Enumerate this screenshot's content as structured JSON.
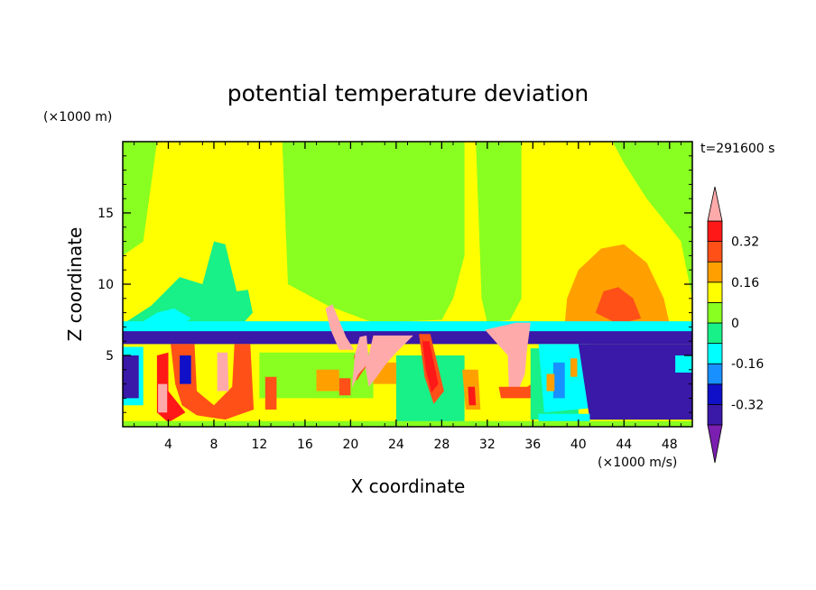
{
  "chart_data": {
    "type": "heatmap",
    "title": "potential temperature deviation",
    "xlabel": "X coordinate",
    "ylabel": "Z coordinate",
    "x_unit": "(×1000 m/s)",
    "y_unit": "(×1000 m)",
    "time_label": "t=291600 s",
    "xlim": [
      0,
      50
    ],
    "ylim": [
      0,
      20
    ],
    "x_ticks": [
      4,
      8,
      12,
      16,
      20,
      24,
      28,
      32,
      36,
      40,
      44,
      48
    ],
    "y_ticks": [
      5,
      10,
      15
    ],
    "x_tick_labels": [
      "4",
      "8",
      "12",
      "16",
      "20",
      "24",
      "28",
      "32",
      "36",
      "40",
      "44",
      "48"
    ],
    "y_tick_labels": [
      "5",
      "10",
      "15"
    ],
    "colorbar": {
      "levels": [
        -0.4,
        -0.32,
        -0.24,
        -0.16,
        -0.08,
        0,
        0.08,
        0.16,
        0.24,
        0.32,
        0.4
      ],
      "colors": [
        "#7a1fb0",
        "#3a18a8",
        "#1010c8",
        "#1890ff",
        "#00ffff",
        "#18f088",
        "#88ff20",
        "#ffff00",
        "#ffa000",
        "#ff5018",
        "#ff1818",
        "#ffaaaa"
      ],
      "tick_values": [
        -0.32,
        -0.16,
        0,
        0.16,
        0.32
      ],
      "tick_labels": [
        "-0.32",
        "-0.16",
        "0",
        "0.16",
        "0.32"
      ],
      "extend": "both"
    },
    "regions": [
      {
        "v": 0.08,
        "pts": [
          [
            0,
            20
          ],
          [
            50,
            20
          ],
          [
            50,
            6.8
          ],
          [
            0,
            6.8
          ]
        ]
      },
      {
        "v": 0,
        "pts": [
          [
            14,
            20
          ],
          [
            30,
            20
          ],
          [
            30,
            12
          ],
          [
            29,
            9
          ],
          [
            28,
            7.5
          ],
          [
            22,
            7.3
          ],
          [
            18,
            8.5
          ],
          [
            14.5,
            10
          ]
        ]
      },
      {
        "v": 0,
        "pts": [
          [
            31,
            20
          ],
          [
            35,
            20
          ],
          [
            35,
            9
          ],
          [
            34,
            7.5
          ],
          [
            32,
            7.3
          ],
          [
            31.5,
            9
          ]
        ]
      },
      {
        "v": 0,
        "pts": [
          [
            0,
            20
          ],
          [
            3,
            20
          ],
          [
            1.8,
            13
          ],
          [
            0,
            12
          ]
        ]
      },
      {
        "v": 0,
        "pts": [
          [
            43,
            20
          ],
          [
            50,
            20
          ],
          [
            50,
            9
          ],
          [
            49,
            13
          ],
          [
            46,
            16
          ],
          [
            44,
            18.5
          ]
        ]
      },
      {
        "v": -0.08,
        "pts": [
          [
            0,
            7.2
          ],
          [
            2.5,
            8.5
          ],
          [
            5,
            10.5
          ],
          [
            7,
            10
          ],
          [
            8,
            13
          ],
          [
            9,
            12.8
          ],
          [
            10,
            9.5
          ],
          [
            11,
            9.6
          ],
          [
            11.4,
            8
          ],
          [
            10.5,
            7.2
          ]
        ]
      },
      {
        "v": -0.16,
        "pts": [
          [
            1,
            7
          ],
          [
            3,
            8
          ],
          [
            4.5,
            8.3
          ],
          [
            6,
            7.6
          ],
          [
            5,
            7
          ]
        ]
      },
      {
        "v": 0.16,
        "pts": [
          [
            38.8,
            7.2
          ],
          [
            39,
            9
          ],
          [
            40,
            11
          ],
          [
            42,
            12.5
          ],
          [
            44,
            12.8
          ],
          [
            46,
            11.5
          ],
          [
            47.5,
            9
          ],
          [
            48,
            7.2
          ]
        ]
      },
      {
        "v": 0.24,
        "pts": [
          [
            41.5,
            8
          ],
          [
            42.2,
            9.5
          ],
          [
            43.5,
            9.8
          ],
          [
            44.8,
            9
          ],
          [
            45.5,
            7.6
          ],
          [
            43.5,
            7.2
          ]
        ]
      },
      {
        "v": -0.16,
        "pts": [
          [
            0,
            7.4
          ],
          [
            50,
            7.4
          ],
          [
            50,
            6.3
          ],
          [
            0,
            6.3
          ]
        ]
      },
      {
        "v": -0.4,
        "pts": [
          [
            0,
            6.7
          ],
          [
            50,
            6.7
          ],
          [
            50,
            5.8
          ],
          [
            0,
            5.8
          ]
        ]
      },
      {
        "v": 0.08,
        "pts": [
          [
            0,
            5.6
          ],
          [
            36,
            5.6
          ],
          [
            36,
            0
          ],
          [
            0,
            0
          ]
        ]
      },
      {
        "v": 0,
        "pts": [
          [
            12,
            5.2
          ],
          [
            22,
            5.2
          ],
          [
            22,
            2
          ],
          [
            12,
            2
          ]
        ]
      },
      {
        "v": -0.08,
        "pts": [
          [
            24,
            5
          ],
          [
            30,
            5
          ],
          [
            30,
            0
          ],
          [
            24,
            0
          ]
        ]
      },
      {
        "v": -0.16,
        "pts": [
          [
            0,
            5.6
          ],
          [
            1.8,
            5.6
          ],
          [
            1.8,
            1.5
          ],
          [
            0,
            1.5
          ]
        ]
      },
      {
        "v": -0.4,
        "pts": [
          [
            0,
            5
          ],
          [
            1.4,
            5
          ],
          [
            1.4,
            2
          ],
          [
            0,
            2
          ]
        ]
      },
      {
        "v": 0.24,
        "pts": [
          [
            2.5,
            5.8
          ],
          [
            4.2,
            5.8
          ],
          [
            4.6,
            3
          ],
          [
            5.2,
            1.5
          ],
          [
            6.5,
            0.8
          ],
          [
            9,
            0.5
          ],
          [
            11.5,
            1.2
          ],
          [
            11.2,
            5.8
          ],
          [
            9.8,
            5.8
          ],
          [
            9.6,
            2.8
          ],
          [
            8,
            1.5
          ],
          [
            6.5,
            2.5
          ],
          [
            6.3,
            5.8
          ]
        ]
      },
      {
        "v": 0.32,
        "pts": [
          [
            3,
            5
          ],
          [
            4,
            5.2
          ],
          [
            4,
            2.5
          ],
          [
            5.5,
            1
          ],
          [
            4,
            0.3
          ],
          [
            3,
            1
          ]
        ]
      },
      {
        "v": 0.4,
        "pts": [
          [
            3.1,
            3
          ],
          [
            3.9,
            3
          ],
          [
            3.9,
            1
          ],
          [
            3.1,
            1
          ]
        ]
      },
      {
        "v": 0.4,
        "pts": [
          [
            8.3,
            5.2
          ],
          [
            9.2,
            5.2
          ],
          [
            9.3,
            2.5
          ],
          [
            8.3,
            2.5
          ]
        ]
      },
      {
        "v": -0.32,
        "pts": [
          [
            5,
            5
          ],
          [
            6,
            5
          ],
          [
            6,
            3
          ],
          [
            5,
            3
          ]
        ]
      },
      {
        "v": 0.24,
        "pts": [
          [
            12.5,
            3.5
          ],
          [
            13.5,
            3.5
          ],
          [
            13.5,
            1.2
          ],
          [
            12.5,
            1.2
          ]
        ]
      },
      {
        "v": 0.16,
        "pts": [
          [
            17,
            4
          ],
          [
            19,
            4
          ],
          [
            19,
            2.5
          ],
          [
            17,
            2.5
          ]
        ]
      },
      {
        "v": 0.16,
        "pts": [
          [
            22,
            4.5
          ],
          [
            24,
            4.5
          ],
          [
            24,
            3
          ],
          [
            22,
            3
          ]
        ]
      },
      {
        "v": 0.24,
        "pts": [
          [
            19,
            3.4
          ],
          [
            20,
            3.4
          ],
          [
            20,
            2.2
          ],
          [
            19,
            2.2
          ]
        ]
      },
      {
        "v": 0.4,
        "pts": [
          [
            17.8,
            8.3
          ],
          [
            18.4,
            8.6
          ],
          [
            19.6,
            6.3
          ],
          [
            20.3,
            5.4
          ],
          [
            19,
            5.4
          ],
          [
            18.2,
            6.9
          ]
        ]
      },
      {
        "v": 0.24,
        "pts": [
          [
            20.3,
            5
          ],
          [
            21.3,
            5.8
          ],
          [
            21.6,
            4.5
          ],
          [
            20.5,
            3.2
          ]
        ]
      },
      {
        "v": 0.4,
        "pts": [
          [
            20.8,
            6.3
          ],
          [
            21.4,
            6.4
          ],
          [
            21.6,
            4.5
          ],
          [
            20.7,
            3.7
          ],
          [
            20.1,
            2.7
          ],
          [
            20.4,
            5.1
          ]
        ]
      },
      {
        "v": 0.4,
        "pts": [
          [
            22,
            6.4
          ],
          [
            25.5,
            6.4
          ],
          [
            24,
            5.2
          ],
          [
            23,
            4.3
          ],
          [
            22.3,
            3.5
          ],
          [
            21.6,
            2.8
          ],
          [
            21.3,
            4.1
          ]
        ]
      },
      {
        "v": 0.24,
        "pts": [
          [
            26,
            6.5
          ],
          [
            27,
            6.5
          ],
          [
            28.2,
            2.5
          ],
          [
            27.3,
            1.6
          ],
          [
            26.5,
            3.5
          ]
        ]
      },
      {
        "v": 0.32,
        "pts": [
          [
            26.3,
            6
          ],
          [
            26.9,
            6
          ],
          [
            27.7,
            3
          ],
          [
            27.1,
            2.4
          ],
          [
            26.6,
            4
          ]
        ]
      },
      {
        "v": 0.16,
        "pts": [
          [
            29.8,
            4
          ],
          [
            31.2,
            4
          ],
          [
            31.4,
            1.2
          ],
          [
            30.1,
            1.2
          ]
        ]
      },
      {
        "v": 0.32,
        "pts": [
          [
            30.3,
            2.8
          ],
          [
            30.9,
            2.8
          ],
          [
            31,
            1.5
          ],
          [
            30.4,
            1.5
          ]
        ]
      },
      {
        "v": 0.4,
        "pts": [
          [
            31.8,
            6.8
          ],
          [
            34.5,
            7.3
          ],
          [
            35.8,
            7.3
          ],
          [
            35.5,
            5.5
          ],
          [
            35.3,
            3.7
          ],
          [
            34.8,
            2.7
          ],
          [
            33.9,
            2.5
          ],
          [
            33.8,
            5
          ]
        ]
      },
      {
        "v": 0.24,
        "pts": [
          [
            33,
            2.8
          ],
          [
            35.5,
            2.8
          ],
          [
            36.5,
            3.3
          ],
          [
            36.5,
            2
          ],
          [
            33.2,
            2
          ]
        ]
      },
      {
        "v": -0.08,
        "pts": [
          [
            35.8,
            5.5
          ],
          [
            40,
            5.5
          ],
          [
            40,
            0.5
          ],
          [
            35.8,
            0.5
          ]
        ]
      },
      {
        "v": -0.16,
        "pts": [
          [
            36.5,
            5.8
          ],
          [
            41,
            5.8
          ],
          [
            41,
            1.3
          ],
          [
            37,
            1
          ]
        ]
      },
      {
        "v": -0.24,
        "pts": [
          [
            37.8,
            4.5
          ],
          [
            38.8,
            4.5
          ],
          [
            38.8,
            2
          ],
          [
            37.8,
            2
          ]
        ]
      },
      {
        "v": -0.32,
        "pts": [
          [
            40.3,
            4.6
          ],
          [
            43.4,
            3.3
          ],
          [
            42.6,
            2
          ]
        ]
      },
      {
        "v": 0.16,
        "pts": [
          [
            37.2,
            3.7
          ],
          [
            37.9,
            3.7
          ],
          [
            37.9,
            2.5
          ],
          [
            37.2,
            2.5
          ]
        ]
      },
      {
        "v": 0.16,
        "pts": [
          [
            39.3,
            4.8
          ],
          [
            39.9,
            4.8
          ],
          [
            39.9,
            3.5
          ],
          [
            39.3,
            3.5
          ]
        ]
      },
      {
        "v": -0.4,
        "pts": [
          [
            40,
            5.8
          ],
          [
            50,
            5.8
          ],
          [
            50,
            0.5
          ],
          [
            41,
            0.5
          ]
        ]
      },
      {
        "v": -0.16,
        "pts": [
          [
            36.5,
            0.9
          ],
          [
            41,
            0.9
          ],
          [
            41,
            0.2
          ],
          [
            36.5,
            0.2
          ]
        ]
      },
      {
        "v": -0.16,
        "pts": [
          [
            48.5,
            5
          ],
          [
            50,
            5
          ],
          [
            50,
            3.8
          ],
          [
            48.5,
            3.8
          ]
        ]
      },
      {
        "v": 0,
        "pts": [
          [
            0,
            0.4
          ],
          [
            50,
            0.4
          ],
          [
            50,
            0
          ],
          [
            0,
            0
          ]
        ]
      }
    ]
  }
}
